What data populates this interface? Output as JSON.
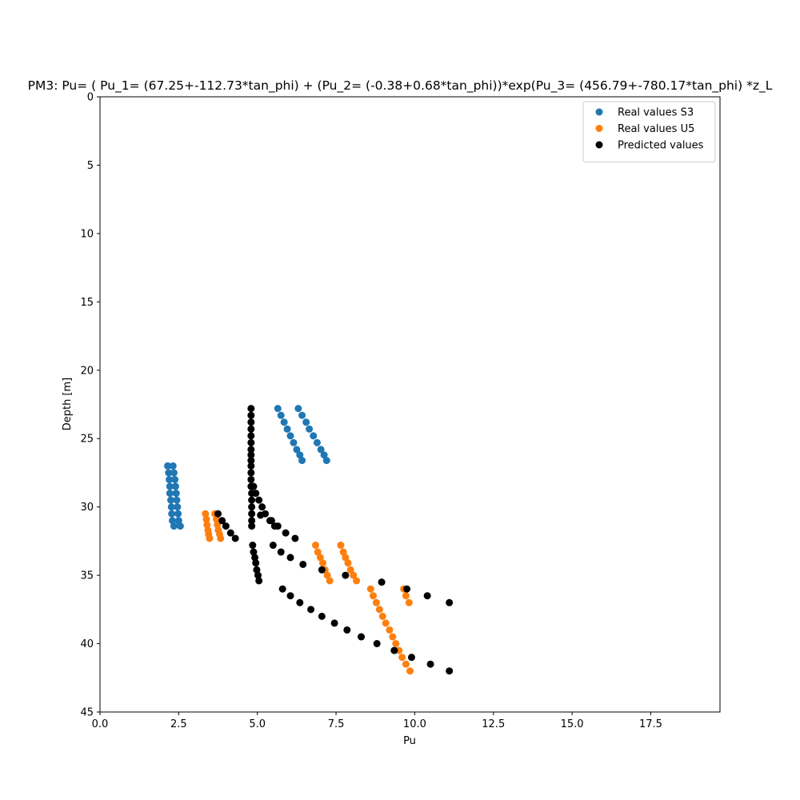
{
  "chart_data": {
    "type": "scatter",
    "title": "PM3: Pu= ( Pu_1= (67.25+-112.73*tan_phi) + (Pu_2= (-0.38+0.68*tan_phi))*exp(Pu_3= (456.79+-780.17*tan_phi) *z_L",
    "xlabel": "Pu",
    "ylabel": "Depth [m]",
    "xlim": [
      0,
      19.7
    ],
    "ylim": [
      45,
      0
    ],
    "y_inverted": true,
    "xticks": [
      "0.0",
      "2.5",
      "5.0",
      "7.5",
      "10.0",
      "12.5",
      "15.0",
      "17.5"
    ],
    "yticks": [
      "0",
      "5",
      "10",
      "15",
      "20",
      "25",
      "30",
      "35",
      "40",
      "45"
    ],
    "grid": false,
    "legend_position": "top-right",
    "series": [
      {
        "name": "Real values S3",
        "color": "#1f77b4",
        "points": [
          [
            5.65,
            22.8
          ],
          [
            5.75,
            23.3
          ],
          [
            5.85,
            23.8
          ],
          [
            5.95,
            24.3
          ],
          [
            6.05,
            24.8
          ],
          [
            6.15,
            25.3
          ],
          [
            6.25,
            25.8
          ],
          [
            6.35,
            26.2
          ],
          [
            6.42,
            26.6
          ],
          [
            6.3,
            22.8
          ],
          [
            6.42,
            23.3
          ],
          [
            6.55,
            23.8
          ],
          [
            6.65,
            24.3
          ],
          [
            6.78,
            24.8
          ],
          [
            6.9,
            25.3
          ],
          [
            7.02,
            25.8
          ],
          [
            7.12,
            26.2
          ],
          [
            7.2,
            26.6
          ],
          [
            2.15,
            27.0
          ],
          [
            2.18,
            27.5
          ],
          [
            2.2,
            28.0
          ],
          [
            2.22,
            28.5
          ],
          [
            2.22,
            29.0
          ],
          [
            2.25,
            29.5
          ],
          [
            2.27,
            30.0
          ],
          [
            2.28,
            30.5
          ],
          [
            2.3,
            31.0
          ],
          [
            2.35,
            31.4
          ],
          [
            2.32,
            27.0
          ],
          [
            2.35,
            27.5
          ],
          [
            2.38,
            28.0
          ],
          [
            2.4,
            28.5
          ],
          [
            2.42,
            29.0
          ],
          [
            2.44,
            29.5
          ],
          [
            2.46,
            30.0
          ],
          [
            2.48,
            30.5
          ],
          [
            2.5,
            31.0
          ],
          [
            2.55,
            31.4
          ]
        ]
      },
      {
        "name": "Real values U5",
        "color": "#ff7f0e",
        "points": [
          [
            3.35,
            30.5
          ],
          [
            3.38,
            30.9
          ],
          [
            3.4,
            31.3
          ],
          [
            3.43,
            31.7
          ],
          [
            3.45,
            32.0
          ],
          [
            3.48,
            32.3
          ],
          [
            3.65,
            30.5
          ],
          [
            3.7,
            30.9
          ],
          [
            3.73,
            31.3
          ],
          [
            3.76,
            31.7
          ],
          [
            3.8,
            32.0
          ],
          [
            3.83,
            32.3
          ],
          [
            6.85,
            32.8
          ],
          [
            6.92,
            33.3
          ],
          [
            7.0,
            33.7
          ],
          [
            7.08,
            34.1
          ],
          [
            7.15,
            34.6
          ],
          [
            7.22,
            35.0
          ],
          [
            7.3,
            35.4
          ],
          [
            7.65,
            32.8
          ],
          [
            7.73,
            33.3
          ],
          [
            7.8,
            33.7
          ],
          [
            7.88,
            34.1
          ],
          [
            7.96,
            34.6
          ],
          [
            8.05,
            35.0
          ],
          [
            8.15,
            35.4
          ],
          [
            8.6,
            36.0
          ],
          [
            8.68,
            36.5
          ],
          [
            8.78,
            37.0
          ],
          [
            8.88,
            37.5
          ],
          [
            8.98,
            38.0
          ],
          [
            9.08,
            38.5
          ],
          [
            9.2,
            39.0
          ],
          [
            9.3,
            39.5
          ],
          [
            9.4,
            40.0
          ],
          [
            9.5,
            40.5
          ],
          [
            9.6,
            41.0
          ],
          [
            9.72,
            41.5
          ],
          [
            9.85,
            42.0
          ],
          [
            9.65,
            36.0
          ],
          [
            9.72,
            36.5
          ],
          [
            9.82,
            37.0
          ]
        ]
      },
      {
        "name": "Predicted values",
        "color": "#000000",
        "points": [
          [
            4.8,
            22.8
          ],
          [
            4.8,
            23.3
          ],
          [
            4.8,
            23.8
          ],
          [
            4.8,
            24.3
          ],
          [
            4.8,
            24.8
          ],
          [
            4.8,
            25.3
          ],
          [
            4.8,
            25.8
          ],
          [
            4.8,
            26.2
          ],
          [
            4.8,
            26.6
          ],
          [
            4.8,
            27.0
          ],
          [
            4.8,
            27.5
          ],
          [
            4.8,
            28.0
          ],
          [
            4.8,
            28.5
          ],
          [
            4.82,
            29.0
          ],
          [
            4.82,
            29.5
          ],
          [
            4.82,
            30.0
          ],
          [
            4.82,
            30.5
          ],
          [
            4.82,
            31.0
          ],
          [
            4.82,
            31.4
          ],
          [
            4.88,
            28.5
          ],
          [
            4.95,
            29.0
          ],
          [
            5.05,
            29.5
          ],
          [
            5.15,
            30.0
          ],
          [
            5.25,
            30.5
          ],
          [
            5.45,
            31.0
          ],
          [
            5.65,
            31.4
          ],
          [
            5.9,
            31.9
          ],
          [
            6.2,
            32.3
          ],
          [
            5.1,
            30.6
          ],
          [
            5.4,
            31.0
          ],
          [
            5.55,
            31.4
          ],
          [
            3.75,
            30.5
          ],
          [
            3.88,
            31.0
          ],
          [
            4.0,
            31.4
          ],
          [
            4.15,
            31.9
          ],
          [
            4.3,
            32.3
          ],
          [
            4.85,
            32.8
          ],
          [
            4.88,
            33.3
          ],
          [
            4.92,
            33.7
          ],
          [
            4.95,
            34.1
          ],
          [
            4.98,
            34.6
          ],
          [
            5.02,
            35.0
          ],
          [
            5.05,
            35.4
          ],
          [
            5.5,
            32.8
          ],
          [
            5.75,
            33.3
          ],
          [
            6.05,
            33.7
          ],
          [
            6.45,
            34.2
          ],
          [
            7.05,
            34.6
          ],
          [
            7.8,
            35.0
          ],
          [
            8.95,
            35.5
          ],
          [
            5.8,
            36.0
          ],
          [
            6.05,
            36.5
          ],
          [
            6.35,
            37.0
          ],
          [
            6.7,
            37.5
          ],
          [
            7.05,
            38.0
          ],
          [
            7.45,
            38.5
          ],
          [
            7.85,
            39.0
          ],
          [
            8.3,
            39.5
          ],
          [
            8.8,
            40.0
          ],
          [
            9.35,
            40.5
          ],
          [
            9.9,
            41.0
          ],
          [
            10.5,
            41.5
          ],
          [
            11.1,
            42.0
          ],
          [
            9.75,
            36.0
          ],
          [
            10.4,
            36.5
          ],
          [
            11.1,
            37.0
          ]
        ]
      }
    ]
  }
}
